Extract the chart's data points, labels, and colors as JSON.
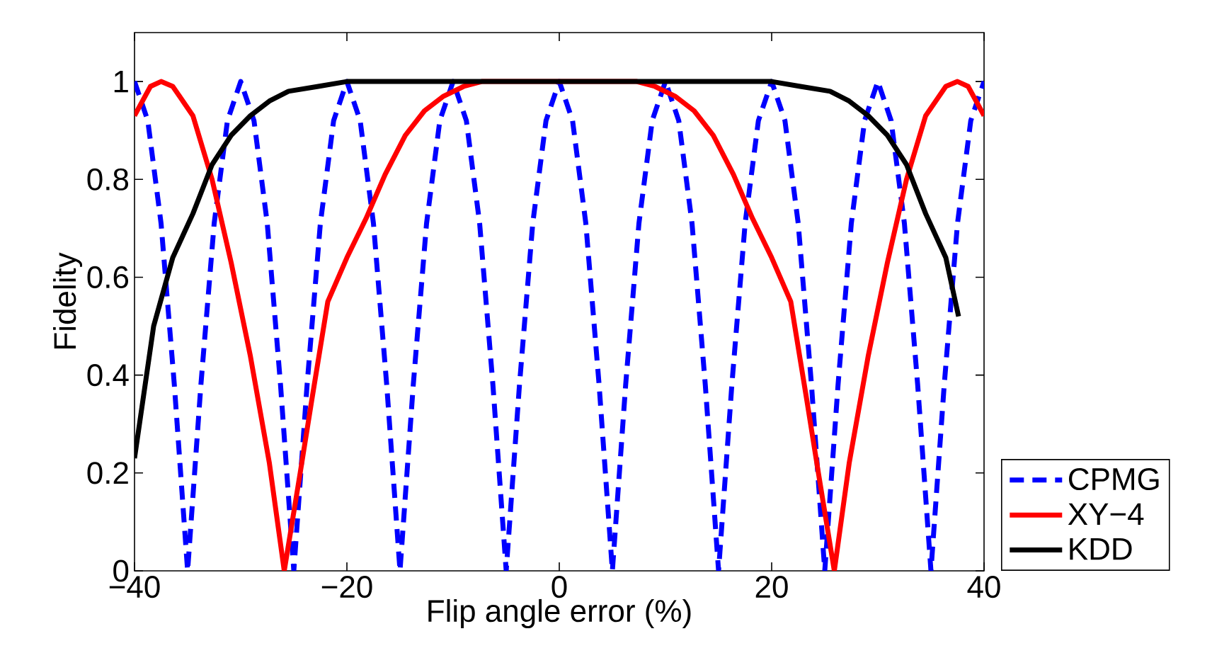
{
  "chart_data": {
    "type": "line",
    "xlabel": "Flip angle error (%)",
    "ylabel": "Fidelity",
    "xlim": [
      -40,
      40
    ],
    "ylim": [
      0,
      1.1
    ],
    "xticks": [
      {
        "value": -40,
        "label": "−40"
      },
      {
        "value": -20,
        "label": "−20"
      },
      0,
      20,
      40
    ],
    "yticks": [
      0,
      0.2,
      0.4,
      0.6,
      0.8,
      1
    ],
    "legend": "bottom right",
    "series": [
      {
        "name": "CPMG",
        "color": "#0000ff",
        "line_style": "dashed",
        "x": [
          -40,
          -38.75,
          -37.5,
          -36.25,
          -35,
          -33.75,
          -32.5,
          -31.25,
          -30,
          -28.75,
          -27.5,
          -26.25,
          -25,
          -23.75,
          -22.5,
          -21.25,
          -20,
          -18.75,
          -17.5,
          -16.25,
          -15,
          -13.75,
          -12.5,
          -11.25,
          -10,
          -8.75,
          -7.5,
          -6.25,
          -5,
          -3.75,
          -2.5,
          -1.25,
          0,
          1.25,
          2.5,
          3.75,
          5,
          6.25,
          7.5,
          8.75,
          10,
          11.25,
          12.5,
          13.75,
          15,
          16.25,
          17.5,
          18.75,
          20,
          21.25,
          22.5,
          23.75,
          25,
          26.25,
          27.5,
          28.75,
          30,
          31.25,
          32.5,
          33.75,
          35,
          36.25,
          37.5,
          38.75,
          40
        ],
        "values": [
          1,
          0.92,
          0.71,
          0.38,
          0,
          0.38,
          0.71,
          0.92,
          1,
          0.92,
          0.71,
          0.38,
          0,
          0.38,
          0.71,
          0.92,
          1,
          0.92,
          0.71,
          0.38,
          0,
          0.38,
          0.71,
          0.92,
          1,
          0.92,
          0.71,
          0.38,
          0,
          0.38,
          0.71,
          0.92,
          1,
          0.92,
          0.71,
          0.38,
          0,
          0.38,
          0.71,
          0.92,
          1,
          0.92,
          0.71,
          0.38,
          0,
          0.38,
          0.71,
          0.92,
          1,
          0.92,
          0.71,
          0.38,
          0,
          0.38,
          0.71,
          0.92,
          1,
          0.92,
          0.71,
          0.38,
          0,
          0.38,
          0.71,
          0.92,
          1
        ]
      },
      {
        "name": "XY−4",
        "color": "#ff0000",
        "line_style": "solid",
        "x": [
          -40,
          -38.5,
          -37.5,
          -36.4,
          -34.5,
          -32.7,
          -30.9,
          -29.1,
          -27.3,
          -25.9,
          -24.4,
          -23.3,
          -21.8,
          -20,
          -18.2,
          -16.4,
          -14.5,
          -12.7,
          -10.9,
          -9,
          -7.3,
          7.3,
          9,
          10.9,
          12.7,
          14.5,
          16.4,
          18.2,
          20,
          21.8,
          23.3,
          24.4,
          25.9,
          27.3,
          29.1,
          30.9,
          32.7,
          34.5,
          36.4,
          37.5,
          38.5,
          40
        ],
        "values": [
          0.93,
          0.99,
          1,
          0.99,
          0.93,
          0.8,
          0.63,
          0.44,
          0.22,
          0,
          0.2,
          0.35,
          0.55,
          0.64,
          0.72,
          0.81,
          0.89,
          0.94,
          0.97,
          0.99,
          1,
          1,
          0.99,
          0.97,
          0.94,
          0.89,
          0.81,
          0.72,
          0.64,
          0.55,
          0.35,
          0.2,
          0,
          0.22,
          0.44,
          0.63,
          0.8,
          0.93,
          0.99,
          1,
          0.99,
          0.93
        ]
      },
      {
        "name": "KDD",
        "color": "#000000",
        "line_style": "solid",
        "x": [
          -40,
          -38.2,
          -36.4,
          -34.5,
          -32.7,
          -30.9,
          -29.1,
          -27.3,
          -25.5,
          -22.7,
          -20,
          20,
          22.7,
          25.5,
          27.3,
          29.1,
          30.9,
          32.7,
          34.5,
          36.4,
          37.6
        ],
        "values": [
          0.23,
          0.5,
          0.64,
          0.73,
          0.83,
          0.89,
          0.93,
          0.96,
          0.98,
          0.99,
          1,
          1,
          0.99,
          0.98,
          0.96,
          0.93,
          0.89,
          0.83,
          0.73,
          0.64,
          0.52
        ]
      }
    ]
  }
}
